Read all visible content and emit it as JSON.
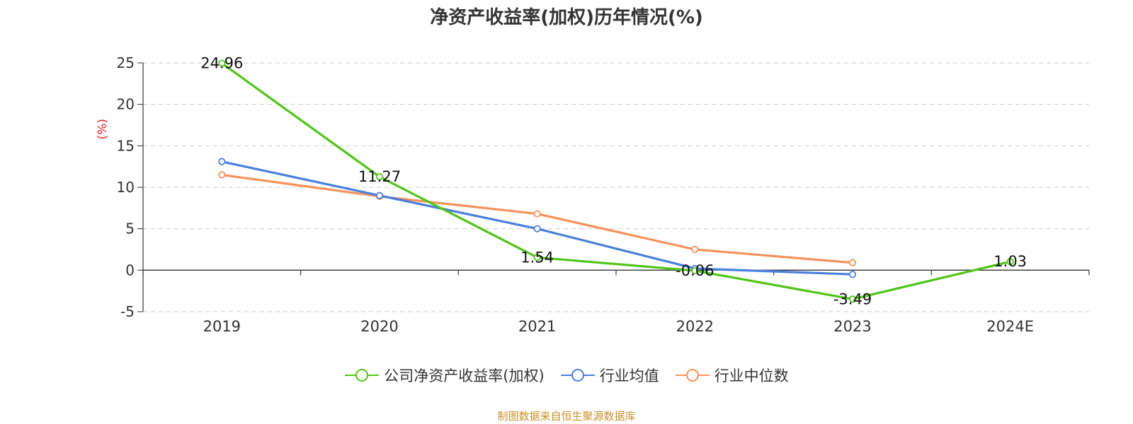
{
  "chart_data": {
    "type": "line",
    "title": "净资产收益率(加权)历年情况(%)",
    "ylabel": "(%)",
    "xlabel": "",
    "categories": [
      "2019",
      "2020",
      "2021",
      "2022",
      "2023",
      "2024E"
    ],
    "yticks": [
      25,
      20,
      15,
      10,
      5,
      0,
      -5
    ],
    "ytick_labels": [
      "25",
      "20",
      "15",
      "10",
      "5",
      "0",
      "-5"
    ],
    "ylim": [
      -5,
      25
    ],
    "grid": true,
    "legend_position": "bottom-center",
    "series": [
      {
        "name": "公司净资产收益率(加权)",
        "color": "#52c41a",
        "values": [
          24.96,
          11.27,
          1.54,
          -0.06,
          -3.49,
          1.03
        ],
        "labels": [
          "24.96",
          "11.27",
          "1.54",
          "-0.06",
          "-3.49",
          "1.03"
        ]
      },
      {
        "name": "行业均值",
        "color": "#4a7fdc",
        "values": [
          13.1,
          9.0,
          5.0,
          0.2,
          -0.5,
          null
        ]
      },
      {
        "name": "行业中位数",
        "color": "#f7925c",
        "values": [
          11.5,
          8.9,
          6.8,
          2.5,
          0.9,
          null
        ]
      }
    ],
    "y_axis_label_color": "#e02020"
  },
  "footer": {
    "source": "制图数据来自恒生聚源数据库"
  }
}
